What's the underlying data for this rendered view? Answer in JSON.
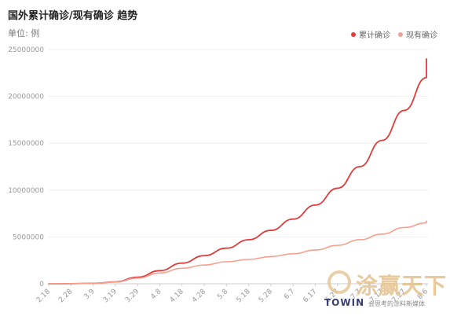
{
  "header": {
    "title": "国外累计确诊/现有确诊 趋势",
    "unit": "单位: 例"
  },
  "colors": {
    "cumulative": "#e03b3b",
    "current": "#f6a08f",
    "grid": "#eeeeee",
    "axis_text": "#999999"
  },
  "watermark": {
    "logo_text": "涂赢天下",
    "brand": "TOWIN",
    "slogan": "会思考的涂料新媒体"
  },
  "chart_data": {
    "type": "line",
    "title": "国外累计确诊/现有确诊 趋势",
    "ylabel": "单位: 例",
    "xlabel": "",
    "ylim": [
      0,
      25000000
    ],
    "y_ticks": [
      "0",
      "5000000",
      "10000000",
      "15000000",
      "20000000",
      "25000000"
    ],
    "y_tick_values": [
      0,
      5000000,
      10000000,
      15000000,
      20000000,
      25000000
    ],
    "legend_position": "top-right",
    "grid": true,
    "x_tick_labels": [
      "2.18",
      "2.28",
      "3.9",
      "3.19",
      "3.29",
      "4.8",
      "4.18",
      "4.28",
      "5.8",
      "5.18",
      "5.28",
      "6.7",
      "6.17",
      "6.27",
      "7.7",
      "7.17",
      "7.27",
      "8.6"
    ],
    "series": [
      {
        "name": "累计确诊",
        "x": [
          "2.18",
          "2.28",
          "3.9",
          "3.19",
          "3.29",
          "4.8",
          "4.18",
          "4.28",
          "5.8",
          "5.18",
          "5.28",
          "6.7",
          "6.17",
          "6.27",
          "7.7",
          "7.17",
          "7.27",
          "8.6"
        ],
        "values": [
          2000,
          10000,
          50000,
          200000,
          700000,
          1400000,
          2200000,
          3000000,
          3800000,
          4700000,
          5700000,
          6900000,
          8400000,
          10200000,
          12500000,
          15300000,
          18500000,
          22000000
        ]
      },
      {
        "name": "现有确诊",
        "x": [
          "2.18",
          "2.28",
          "3.9",
          "3.19",
          "3.29",
          "4.8",
          "4.18",
          "4.28",
          "5.8",
          "5.18",
          "5.28",
          "6.7",
          "6.17",
          "6.27",
          "7.7",
          "7.17",
          "7.27",
          "8.6"
        ],
        "values": [
          1800,
          9000,
          45000,
          180000,
          600000,
          1150000,
          1650000,
          2000000,
          2350000,
          2600000,
          2900000,
          3200000,
          3600000,
          4100000,
          4700000,
          5300000,
          6000000,
          6500000
        ]
      }
    ],
    "tail_values": {
      "cumulative_end": 24000000,
      "current_end": 6700000
    }
  }
}
